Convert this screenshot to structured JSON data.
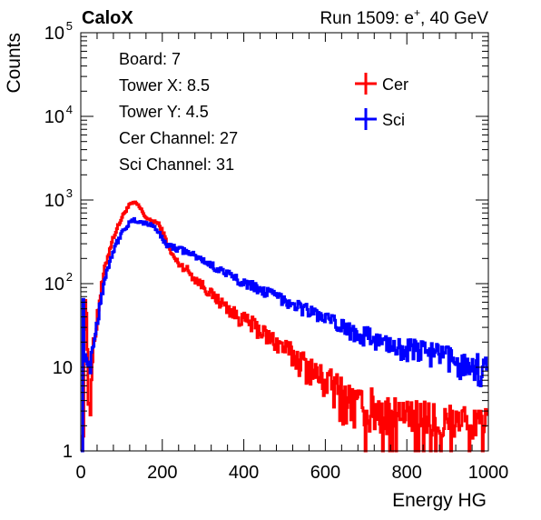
{
  "chart_data": {
    "type": "line",
    "title_left": "CaloX",
    "title_right": "Run 1509: e",
    "title_right_sup": "+",
    "title_right_tail": ", 40 GeV",
    "xlabel": "Energy HG",
    "ylabel": "Counts",
    "xlim": [
      0,
      1000
    ],
    "ylim": [
      1,
      100000
    ],
    "yscale": "log",
    "x_ticks": [
      {
        "value": 0,
        "label": "0"
      },
      {
        "value": 200,
        "label": "200"
      },
      {
        "value": 400,
        "label": "400"
      },
      {
        "value": 600,
        "label": "600"
      },
      {
        "value": 800,
        "label": "800"
      },
      {
        "value": 1000,
        "label": "1000"
      }
    ],
    "y_ticks": [
      {
        "value": 1,
        "base": "1",
        "exp": ""
      },
      {
        "value": 10,
        "base": "10",
        "exp": ""
      },
      {
        "value": 100,
        "base": "10",
        "exp": "2"
      },
      {
        "value": 1000,
        "base": "10",
        "exp": "3"
      },
      {
        "value": 10000,
        "base": "10",
        "exp": "4"
      },
      {
        "value": 100000,
        "base": "10",
        "exp": "5"
      }
    ],
    "info_lines": [
      "Board: 7",
      "Tower X: 8.5",
      "Tower Y: 4.5",
      "Cer Channel: 27",
      "Sci Channel: 31"
    ],
    "legend_position": "top-right",
    "grid": false,
    "series": [
      {
        "name": "Cer",
        "color": "#ff0000",
        "points": [
          [
            0,
            1
          ],
          [
            6,
            1
          ],
          [
            8,
            25
          ],
          [
            10,
            35
          ],
          [
            12,
            90
          ],
          [
            14,
            40
          ],
          [
            16,
            20
          ],
          [
            18,
            4
          ],
          [
            20,
            3
          ],
          [
            24,
            6
          ],
          [
            30,
            15
          ],
          [
            40,
            40
          ],
          [
            50,
            85
          ],
          [
            60,
            160
          ],
          [
            70,
            250
          ],
          [
            80,
            360
          ],
          [
            90,
            470
          ],
          [
            100,
            600
          ],
          [
            110,
            750
          ],
          [
            120,
            870
          ],
          [
            130,
            930
          ],
          [
            140,
            880
          ],
          [
            150,
            740
          ],
          [
            160,
            620
          ],
          [
            170,
            560
          ],
          [
            180,
            560
          ],
          [
            190,
            520
          ],
          [
            200,
            430
          ],
          [
            210,
            320
          ],
          [
            220,
            240
          ],
          [
            230,
            200
          ],
          [
            240,
            175
          ],
          [
            250,
            160
          ],
          [
            260,
            150
          ],
          [
            270,
            130
          ],
          [
            280,
            115
          ],
          [
            300,
            95
          ],
          [
            320,
            75
          ],
          [
            340,
            62
          ],
          [
            360,
            52
          ],
          [
            380,
            42
          ],
          [
            400,
            37
          ],
          [
            420,
            33
          ],
          [
            440,
            28
          ],
          [
            460,
            23
          ],
          [
            480,
            20
          ],
          [
            500,
            17
          ],
          [
            520,
            14
          ],
          [
            540,
            12
          ],
          [
            560,
            10
          ],
          [
            580,
            8
          ],
          [
            600,
            7
          ],
          [
            620,
            6
          ],
          [
            640,
            5
          ],
          [
            660,
            4
          ],
          [
            680,
            3.5
          ],
          [
            700,
            3
          ],
          [
            720,
            3.5
          ],
          [
            740,
            3
          ],
          [
            760,
            2.5
          ],
          [
            780,
            2.5
          ],
          [
            800,
            2
          ],
          [
            820,
            2
          ],
          [
            840,
            2.5
          ],
          [
            860,
            2
          ],
          [
            880,
            2
          ],
          [
            900,
            2
          ],
          [
            920,
            1.8
          ],
          [
            940,
            1.8
          ],
          [
            960,
            1.6
          ],
          [
            980,
            1.6
          ],
          [
            1000,
            1.5
          ]
        ]
      },
      {
        "name": "Sci",
        "color": "#0000ff",
        "points": [
          [
            0,
            1
          ],
          [
            4,
            1
          ],
          [
            6,
            80
          ],
          [
            8,
            15
          ],
          [
            10,
            8
          ],
          [
            12,
            20
          ],
          [
            14,
            12
          ],
          [
            18,
            10
          ],
          [
            22,
            12
          ],
          [
            30,
            18
          ],
          [
            40,
            35
          ],
          [
            50,
            70
          ],
          [
            60,
            120
          ],
          [
            70,
            180
          ],
          [
            80,
            250
          ],
          [
            90,
            320
          ],
          [
            100,
            400
          ],
          [
            110,
            470
          ],
          [
            120,
            530
          ],
          [
            130,
            570
          ],
          [
            140,
            560
          ],
          [
            150,
            540
          ],
          [
            160,
            520
          ],
          [
            170,
            510
          ],
          [
            180,
            490
          ],
          [
            190,
            420
          ],
          [
            200,
            340
          ],
          [
            210,
            300
          ],
          [
            220,
            280
          ],
          [
            240,
            260
          ],
          [
            260,
            240
          ],
          [
            280,
            215
          ],
          [
            300,
            190
          ],
          [
            320,
            165
          ],
          [
            340,
            150
          ],
          [
            360,
            130
          ],
          [
            380,
            115
          ],
          [
            400,
            105
          ],
          [
            420,
            95
          ],
          [
            440,
            85
          ],
          [
            460,
            78
          ],
          [
            480,
            70
          ],
          [
            500,
            65
          ],
          [
            520,
            58
          ],
          [
            540,
            52
          ],
          [
            560,
            48
          ],
          [
            580,
            43
          ],
          [
            600,
            38
          ],
          [
            620,
            34
          ],
          [
            640,
            31
          ],
          [
            660,
            28
          ],
          [
            680,
            26
          ],
          [
            700,
            24
          ],
          [
            720,
            22
          ],
          [
            740,
            20
          ],
          [
            760,
            19
          ],
          [
            780,
            18
          ],
          [
            800,
            17
          ],
          [
            820,
            16
          ],
          [
            840,
            16
          ],
          [
            860,
            15
          ],
          [
            880,
            14
          ],
          [
            900,
            13
          ],
          [
            920,
            12
          ],
          [
            940,
            11
          ],
          [
            960,
            11
          ],
          [
            980,
            10
          ],
          [
            1000,
            9
          ]
        ]
      }
    ]
  }
}
